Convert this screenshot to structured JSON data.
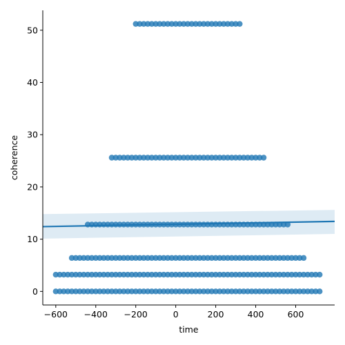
{
  "chart_data": {
    "type": "scatter",
    "xlabel": "time",
    "ylabel": "coherence",
    "xlim": [
      -665,
      795
    ],
    "ylim": [
      -2.6,
      53.8
    ],
    "xticks": [
      -600,
      -400,
      -200,
      0,
      200,
      400,
      600
    ],
    "yticks": [
      0,
      10,
      20,
      30,
      40,
      50
    ],
    "grid": false,
    "colors": {
      "points": "#1f77b4",
      "line": "#1f77b4",
      "band": "#1f77b4"
    },
    "bands": [
      {
        "y": 51.2,
        "x_min": -200,
        "x_max": 320
      },
      {
        "y": 25.6,
        "x_min": -320,
        "x_max": 440
      },
      {
        "y": 12.8,
        "x_min": -440,
        "x_max": 560
      },
      {
        "y": 6.4,
        "x_min": -520,
        "x_max": 640
      },
      {
        "y": 3.2,
        "x_min": -600,
        "x_max": 720
      },
      {
        "y": 0.0,
        "x_min": -600,
        "x_max": 720
      }
    ],
    "point_step": 20,
    "regression": {
      "x": [
        -665,
        795
      ],
      "y": [
        12.4,
        13.4
      ],
      "ci_lower": [
        10.1,
        11.0
      ],
      "ci_upper": [
        14.8,
        15.6
      ]
    }
  }
}
